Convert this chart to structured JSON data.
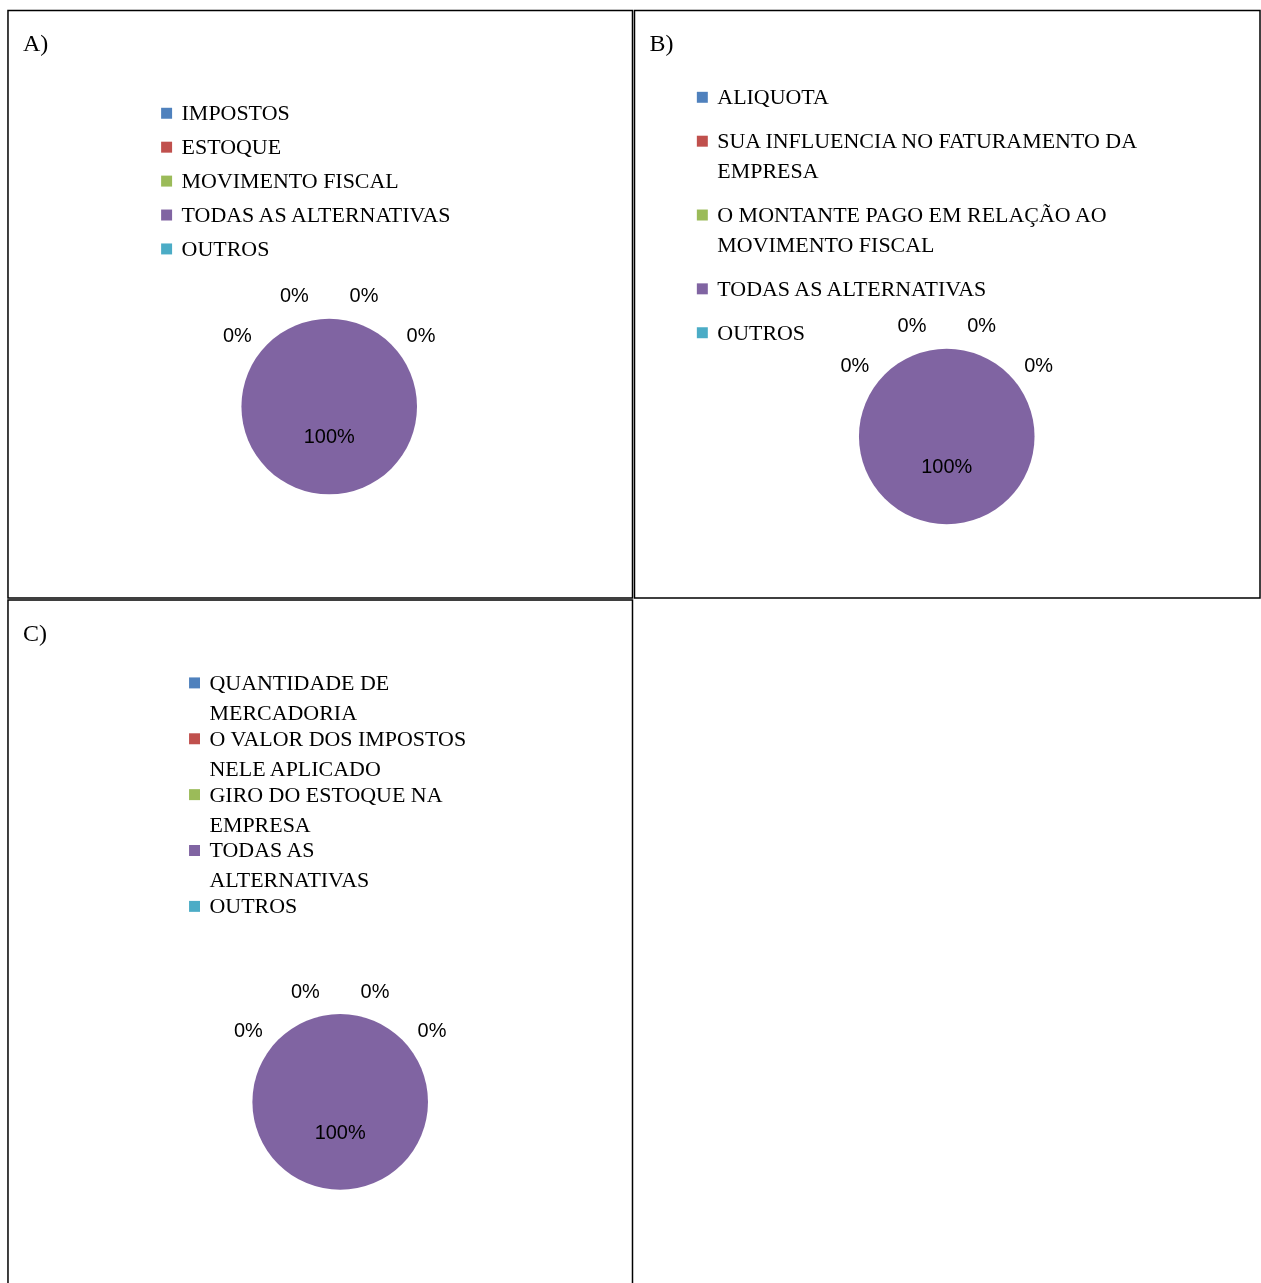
{
  "chart_data": [
    {
      "type": "pie",
      "title": "A)",
      "categories": [
        "IMPOSTOS",
        "ESTOQUE",
        "MOVIMENTO FISCAL",
        "TODAS AS ALTERNATIVAS",
        "OUTROS"
      ],
      "values": [
        0,
        0,
        0,
        100,
        0
      ],
      "colors": [
        "#4f81bd",
        "#c0504d",
        "#9bbb59",
        "#8064a2",
        "#4bacc6"
      ],
      "value_labels": [
        "0%",
        "0%",
        "0%",
        "100%",
        "0%"
      ],
      "legend": "top"
    },
    {
      "type": "pie",
      "title": "B)",
      "categories": [
        "ALIQUOTA",
        "SUA INFLUENCIA NO FATURAMENTO DA EMPRESA",
        "O MONTANTE PAGO EM RELAÇÃO AO MOVIMENTO FISCAL",
        "TODAS AS ALTERNATIVAS",
        "OUTROS"
      ],
      "values": [
        0,
        0,
        0,
        100,
        0
      ],
      "colors": [
        "#4f81bd",
        "#c0504d",
        "#9bbb59",
        "#8064a2",
        "#4bacc6"
      ],
      "value_labels": [
        "0%",
        "0%",
        "0%",
        "100%",
        "0%"
      ],
      "legend": "top"
    },
    {
      "type": "pie",
      "title": "C)",
      "categories": [
        "QUANTIDADE DE MERCADORIA",
        "O VALOR DOS IMPOSTOS NELE APLICADO",
        "GIRO DO ESTOQUE NA EMPRESA",
        "TODAS AS ALTERNATIVAS",
        "OUTROS"
      ],
      "values": [
        0,
        0,
        0,
        100,
        0
      ],
      "colors": [
        "#4f81bd",
        "#c0504d",
        "#9bbb59",
        "#8064a2",
        "#4bacc6"
      ],
      "value_labels": [
        "0%",
        "0%",
        "0%",
        "100%",
        "0%"
      ],
      "legend": "top"
    }
  ]
}
